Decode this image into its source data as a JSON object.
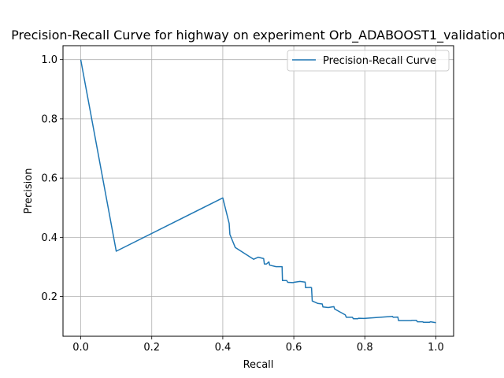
{
  "chart_data": {
    "type": "line",
    "title": "Precision-Recall Curve for highway on experiment Orb_ADABOOST1_validation",
    "xlabel": "Recall",
    "ylabel": "Precision",
    "xlim": [
      -0.05,
      1.05
    ],
    "ylim": [
      0.066,
      1.047
    ],
    "grid": true,
    "legend_position": "top-right",
    "xticks": [
      0.0,
      0.2,
      0.4,
      0.6,
      0.8,
      1.0
    ],
    "xtick_labels": [
      "0.0",
      "0.2",
      "0.4",
      "0.6",
      "0.8",
      "1.0"
    ],
    "yticks": [
      0.2,
      0.4,
      0.6,
      0.8,
      1.0
    ],
    "ytick_labels": [
      "0.2",
      "0.4",
      "0.6",
      "0.8",
      "1.0"
    ],
    "series": [
      {
        "name": "Precision-Recall Curve",
        "color": "#1f77b4",
        "x": [
          0.0,
          0.1,
          0.4,
          0.418,
          0.42,
          0.435,
          0.487,
          0.5,
          0.515,
          0.517,
          0.523,
          0.53,
          0.532,
          0.55,
          0.567,
          0.568,
          0.58,
          0.583,
          0.598,
          0.6,
          0.617,
          0.632,
          0.633,
          0.648,
          0.65,
          0.652,
          0.667,
          0.68,
          0.682,
          0.697,
          0.713,
          0.715,
          0.745,
          0.748,
          0.765,
          0.768,
          0.78,
          0.782,
          0.797,
          0.878,
          0.88,
          0.893,
          0.895,
          0.93,
          0.933,
          0.945,
          0.948,
          0.963,
          0.965,
          0.982,
          0.985,
          1.0
        ],
        "y": [
          1.0,
          0.353,
          0.533,
          0.447,
          0.41,
          0.366,
          0.326,
          0.333,
          0.328,
          0.31,
          0.31,
          0.317,
          0.306,
          0.301,
          0.301,
          0.254,
          0.254,
          0.248,
          0.247,
          0.248,
          0.251,
          0.249,
          0.23,
          0.231,
          0.23,
          0.185,
          0.177,
          0.175,
          0.165,
          0.163,
          0.166,
          0.158,
          0.138,
          0.13,
          0.13,
          0.125,
          0.125,
          0.127,
          0.126,
          0.133,
          0.13,
          0.131,
          0.119,
          0.119,
          0.12,
          0.12,
          0.115,
          0.115,
          0.113,
          0.113,
          0.115,
          0.112
        ]
      }
    ]
  }
}
